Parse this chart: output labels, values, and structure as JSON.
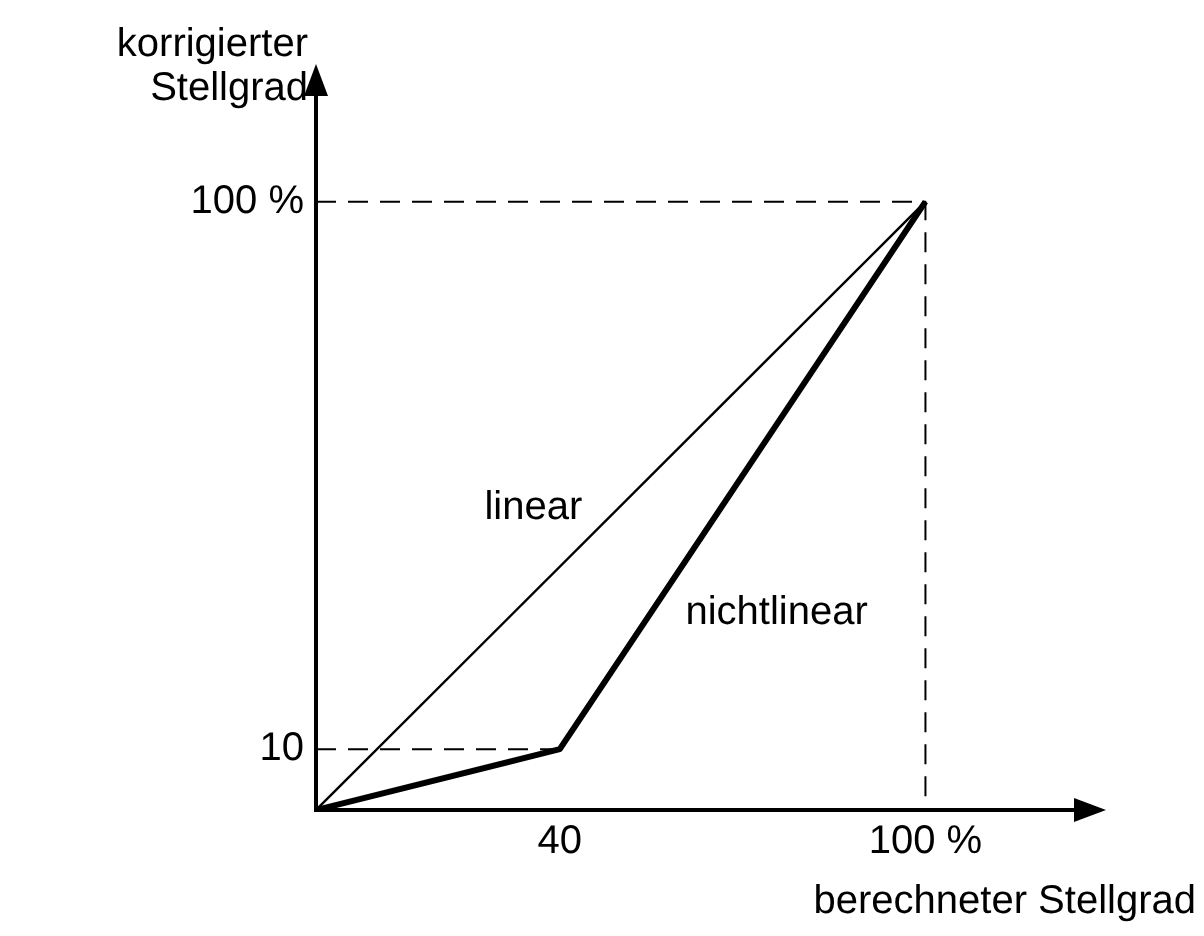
{
  "chart_data": {
    "type": "line",
    "xlabel": "berechneter Stellgrad",
    "ylabel": "korrigierter\nStellgrad",
    "xlim": [
      0,
      127
    ],
    "ylim": [
      0,
      120
    ],
    "xticks": [
      40,
      {
        "value": 100,
        "label": "100 %"
      }
    ],
    "yticks": [
      10,
      {
        "value": 100,
        "label": "100 %"
      }
    ],
    "grid": false,
    "legend": false,
    "marker": "none",
    "series": [
      {
        "name": "linear",
        "color": "#000000",
        "x": [
          0,
          100
        ],
        "values": [
          0,
          100
        ],
        "line_style": "solid"
      },
      {
        "name": "nichtlinear",
        "color": "#000000",
        "x": [
          0,
          40,
          100
        ],
        "values": [
          0,
          10,
          100
        ],
        "line_style": "solid"
      },
      {
        "color": "#000000",
        "x": [
          0,
          40
        ],
        "values": [
          10,
          10
        ],
        "line_style": "dashed"
      },
      {
        "color": "#000000",
        "x": [
          0,
          100,
          100
        ],
        "values": [
          100,
          100,
          0
        ],
        "line_style": "dashed"
      }
    ]
  }
}
